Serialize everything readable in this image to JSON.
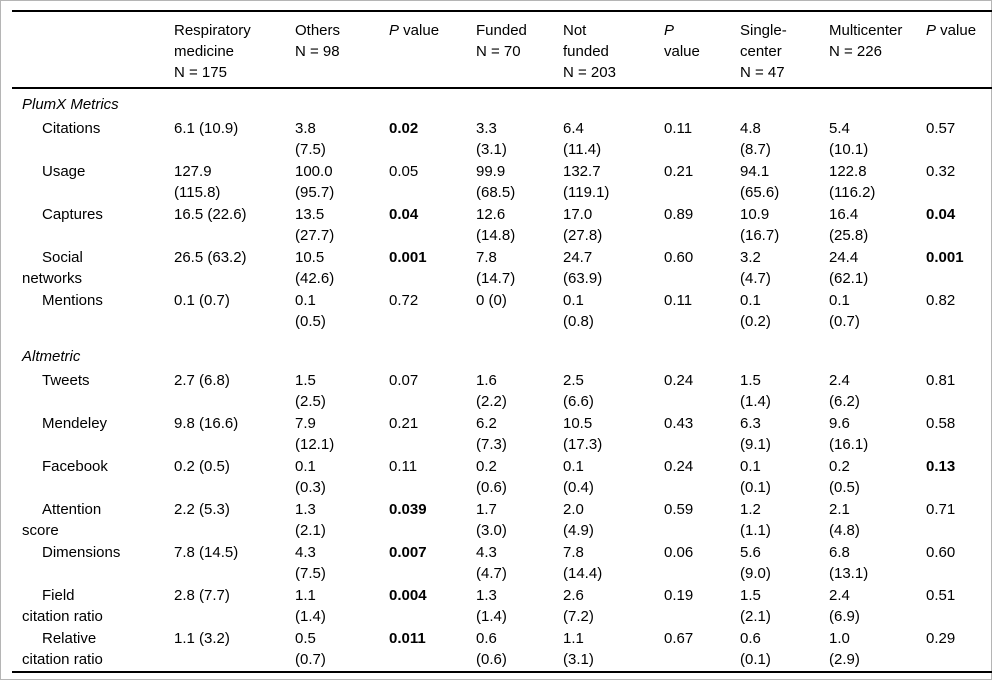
{
  "table": {
    "columns": [
      {
        "key": "metric",
        "label": ""
      },
      {
        "key": "respiratory-medicine",
        "label": "Respiratory\nmedicine\nN = 175"
      },
      {
        "key": "others",
        "label": "Others\nN = 98"
      },
      {
        "key": "p-value-specialty",
        "label": "P value",
        "italic_p": true
      },
      {
        "key": "funded",
        "label": "Funded\nN = 70"
      },
      {
        "key": "not-funded",
        "label": "Not\nfunded\nN = 203"
      },
      {
        "key": "p-value-funding",
        "label": "P\nvalue",
        "italic_p": true
      },
      {
        "key": "single-center",
        "label": "Single-\ncenter\nN = 47"
      },
      {
        "key": "multicenter",
        "label": "Multicenter\nN = 226"
      },
      {
        "key": "p-value-centers",
        "label": "P value",
        "italic_p": true
      }
    ],
    "rows": [
      {
        "type": "section",
        "label": "PlumX Metrics"
      },
      {
        "type": "metric",
        "label": "Citations",
        "cells": [
          {
            "text": "6.1 (10.9)"
          },
          {
            "text": "3.8\n(7.5)"
          },
          {
            "text": "0.02",
            "bold": true
          },
          {
            "text": "3.3\n(3.1)"
          },
          {
            "text": "6.4\n(11.4)"
          },
          {
            "text": "0.11"
          },
          {
            "text": "4.8\n(8.7)"
          },
          {
            "text": "5.4\n(10.1)"
          },
          {
            "text": "0.57"
          }
        ]
      },
      {
        "type": "metric",
        "label": "Usage",
        "cells": [
          {
            "text": "127.9\n(115.8)"
          },
          {
            "text": "100.0\n(95.7)"
          },
          {
            "text": "0.05"
          },
          {
            "text": "99.9\n(68.5)"
          },
          {
            "text": "132.7\n(119.1)"
          },
          {
            "text": "0.21"
          },
          {
            "text": "94.1\n(65.6)"
          },
          {
            "text": "122.8\n(116.2)"
          },
          {
            "text": "0.32"
          }
        ]
      },
      {
        "type": "metric",
        "label": "Captures",
        "cells": [
          {
            "text": "16.5 (22.6)"
          },
          {
            "text": "13.5\n(27.7)"
          },
          {
            "text": "0.04",
            "bold": true
          },
          {
            "text": "12.6\n(14.8)"
          },
          {
            "text": "17.0\n(27.8)"
          },
          {
            "text": "0.89"
          },
          {
            "text": "10.9\n(16.7)"
          },
          {
            "text": "16.4\n(25.8)"
          },
          {
            "text": "0.04",
            "bold": true
          }
        ]
      },
      {
        "type": "metric",
        "label": "Social\nnetworks",
        "cells": [
          {
            "text": "26.5 (63.2)"
          },
          {
            "text": "10.5\n(42.6)"
          },
          {
            "text": "0.001",
            "bold": true
          },
          {
            "text": "7.8\n(14.7)"
          },
          {
            "text": "24.7\n(63.9)"
          },
          {
            "text": "0.60"
          },
          {
            "text": "3.2\n(4.7)"
          },
          {
            "text": "24.4\n(62.1)"
          },
          {
            "text": "0.001",
            "bold": true
          }
        ]
      },
      {
        "type": "metric",
        "label": "Mentions",
        "cells": [
          {
            "text": "0.1 (0.7)"
          },
          {
            "text": "0.1\n(0.5)"
          },
          {
            "text": "0.72"
          },
          {
            "text": "0 (0)"
          },
          {
            "text": "0.1\n(0.8)"
          },
          {
            "text": "0.11"
          },
          {
            "text": "0.1\n(0.2)"
          },
          {
            "text": "0.1\n(0.7)"
          },
          {
            "text": "0.82"
          }
        ]
      },
      {
        "type": "section",
        "label": "Altmetric"
      },
      {
        "type": "metric",
        "label": "Tweets",
        "cells": [
          {
            "text": "2.7 (6.8)"
          },
          {
            "text": "1.5\n(2.5)"
          },
          {
            "text": "0.07"
          },
          {
            "text": "1.6\n(2.2)"
          },
          {
            "text": "2.5\n(6.6)"
          },
          {
            "text": "0.24"
          },
          {
            "text": "1.5\n(1.4)"
          },
          {
            "text": "2.4\n(6.2)"
          },
          {
            "text": "0.81"
          }
        ]
      },
      {
        "type": "metric",
        "label": "Mendeley",
        "cells": [
          {
            "text": "9.8 (16.6)"
          },
          {
            "text": "7.9\n(12.1)"
          },
          {
            "text": "0.21"
          },
          {
            "text": "6.2\n(7.3)"
          },
          {
            "text": "10.5\n(17.3)"
          },
          {
            "text": "0.43"
          },
          {
            "text": "6.3\n(9.1)"
          },
          {
            "text": "9.6\n(16.1)"
          },
          {
            "text": "0.58"
          }
        ]
      },
      {
        "type": "metric",
        "label": "Facebook",
        "cells": [
          {
            "text": "0.2 (0.5)"
          },
          {
            "text": "0.1\n(0.3)"
          },
          {
            "text": "0.11"
          },
          {
            "text": "0.2\n(0.6)"
          },
          {
            "text": "0.1\n(0.4)"
          },
          {
            "text": "0.24"
          },
          {
            "text": "0.1\n(0.1)"
          },
          {
            "text": "0.2\n(0.5)"
          },
          {
            "text": "0.13",
            "bold": true
          }
        ]
      },
      {
        "type": "metric",
        "label": "Attention\nscore",
        "cells": [
          {
            "text": "2.2 (5.3)"
          },
          {
            "text": "1.3\n(2.1)"
          },
          {
            "text": "0.039",
            "bold": true
          },
          {
            "text": "1.7\n(3.0)"
          },
          {
            "text": "2.0\n(4.9)"
          },
          {
            "text": "0.59"
          },
          {
            "text": "1.2\n(1.1)"
          },
          {
            "text": "2.1\n(4.8)"
          },
          {
            "text": "0.71"
          }
        ]
      },
      {
        "type": "metric",
        "label": "Dimensions",
        "cells": [
          {
            "text": "7.8 (14.5)"
          },
          {
            "text": "4.3\n(7.5)"
          },
          {
            "text": "0.007",
            "bold": true
          },
          {
            "text": "4.3\n(4.7)"
          },
          {
            "text": "7.8\n(14.4)"
          },
          {
            "text": "0.06"
          },
          {
            "text": "5.6\n(9.0)"
          },
          {
            "text": "6.8\n(13.1)"
          },
          {
            "text": "0.60"
          }
        ]
      },
      {
        "type": "metric",
        "label": "Field\ncitation ratio",
        "cells": [
          {
            "text": "2.8 (7.7)"
          },
          {
            "text": "1.1\n(1.4)"
          },
          {
            "text": "0.004",
            "bold": true
          },
          {
            "text": "1.3\n(1.4)"
          },
          {
            "text": "2.6\n(7.2)"
          },
          {
            "text": "0.19"
          },
          {
            "text": "1.5\n(2.1)"
          },
          {
            "text": "2.4\n(6.9)"
          },
          {
            "text": "0.51"
          }
        ]
      },
      {
        "type": "metric",
        "label": "Relative\ncitation ratio",
        "cells": [
          {
            "text": "1.1 (3.2)"
          },
          {
            "text": "0.5\n(0.7)"
          },
          {
            "text": "0.011",
            "bold": true
          },
          {
            "text": "0.6\n(0.6)"
          },
          {
            "text": "1.1\n(3.1)"
          },
          {
            "text": "0.67"
          },
          {
            "text": "0.6\n(0.1)"
          },
          {
            "text": "1.0\n(2.9)"
          },
          {
            "text": "0.29"
          }
        ]
      }
    ],
    "colors": {
      "rule": "#000000",
      "frame": "#b5b5b5",
      "text": "#000000",
      "background": "#ffffff"
    }
  }
}
